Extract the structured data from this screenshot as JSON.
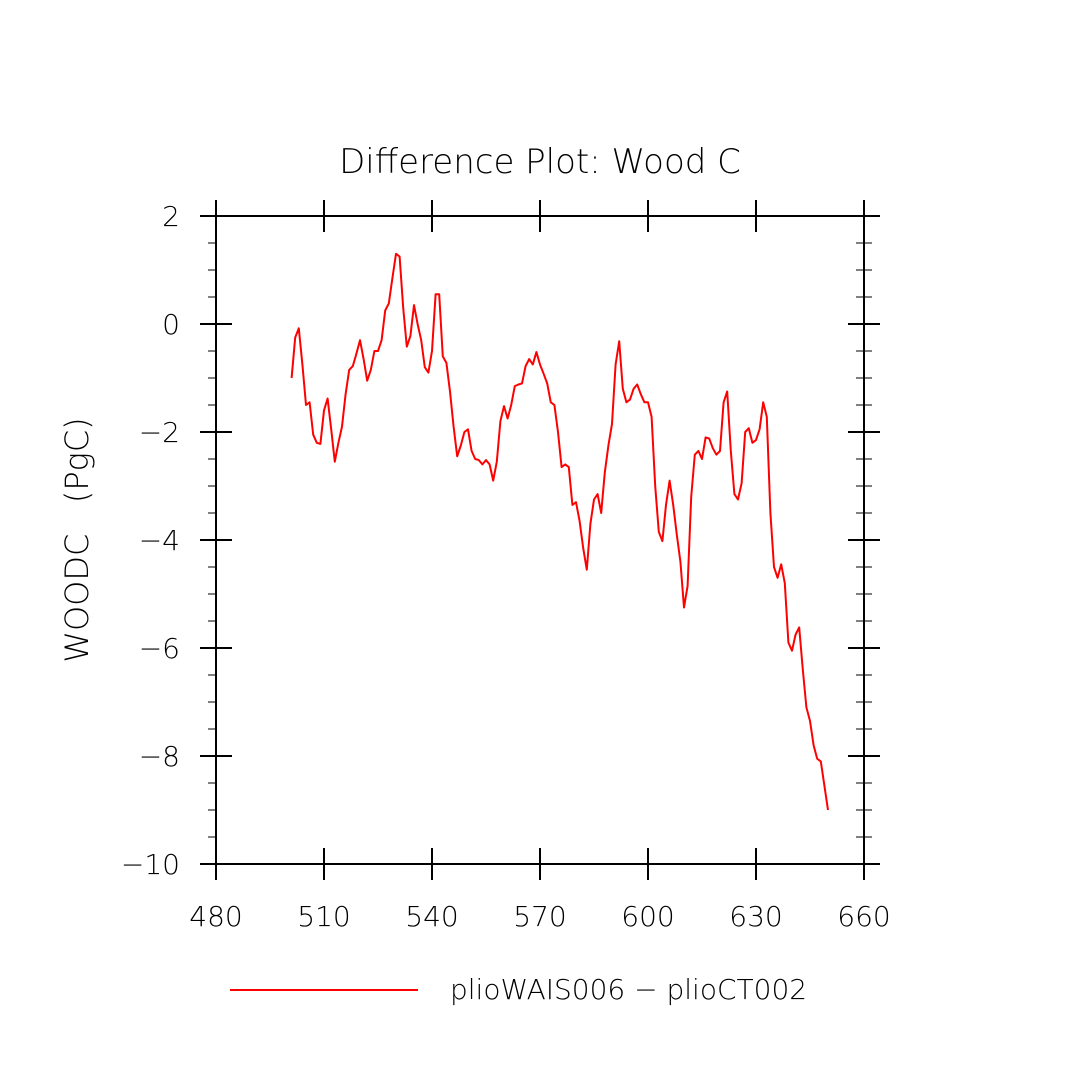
{
  "chart_data": {
    "type": "line",
    "title": "Difference Plot: Wood C",
    "xlabel": "",
    "ylabel": "WOODC   (PgC)",
    "xlim": [
      480,
      660
    ],
    "ylim": [
      -10,
      2
    ],
    "x_ticks": [
      480,
      510,
      540,
      570,
      600,
      630,
      660
    ],
    "x_tick_labels": [
      "480",
      "510",
      "540",
      "570",
      "600",
      "630",
      "660"
    ],
    "y_ticks": [
      2,
      0,
      -2,
      -4,
      -6,
      -8,
      -10
    ],
    "y_tick_labels": [
      "2",
      "0",
      "−2",
      "−4",
      "−6",
      "−8",
      "−10"
    ],
    "grid": false,
    "legend_position": "bottom",
    "series": [
      {
        "name": "plioWAIS006 − plioCT002",
        "color": "#ff0000",
        "x": [
          501,
          502,
          503,
          504,
          505,
          506,
          507,
          508,
          509,
          510,
          511,
          512,
          513,
          514,
          515,
          516,
          517,
          518,
          519,
          520,
          521,
          522,
          523,
          524,
          525,
          526,
          527,
          528,
          529,
          530,
          531,
          532,
          533,
          534,
          535,
          536,
          537,
          538,
          539,
          540,
          541,
          542,
          543,
          544,
          545,
          546,
          547,
          548,
          549,
          550,
          551,
          552,
          553,
          554,
          555,
          556,
          557,
          558,
          559,
          560,
          561,
          562,
          563,
          564,
          565,
          566,
          567,
          568,
          569,
          570,
          571,
          572,
          573,
          574,
          575,
          576,
          577,
          578,
          579,
          580,
          581,
          582,
          583,
          584,
          585,
          586,
          587,
          588,
          589,
          590,
          591,
          592,
          593,
          594,
          595,
          596,
          597,
          598,
          599,
          600,
          601,
          602,
          603,
          604,
          605,
          606,
          607,
          608,
          609,
          610,
          611,
          612,
          613,
          614,
          615,
          616,
          617,
          618,
          619,
          620,
          621,
          622,
          623,
          624,
          625,
          626,
          627,
          628,
          629,
          630,
          631,
          632,
          633,
          634,
          635,
          636,
          637,
          638,
          639,
          640,
          641,
          642,
          643,
          644,
          645,
          646,
          647,
          648,
          649,
          650
        ],
        "y": [
          -1.0,
          -0.25,
          -0.08,
          -0.75,
          -1.5,
          -1.45,
          -2.05,
          -2.2,
          -2.22,
          -1.6,
          -1.38,
          -1.95,
          -2.55,
          -2.2,
          -1.9,
          -1.3,
          -0.85,
          -0.78,
          -0.55,
          -0.3,
          -0.65,
          -1.05,
          -0.85,
          -0.5,
          -0.5,
          -0.3,
          0.25,
          0.38,
          0.85,
          1.3,
          1.25,
          0.3,
          -0.42,
          -0.22,
          0.35,
          0.0,
          -0.3,
          -0.8,
          -0.9,
          -0.5,
          0.55,
          0.55,
          -0.6,
          -0.72,
          -1.25,
          -1.9,
          -2.45,
          -2.25,
          -2.0,
          -1.95,
          -2.35,
          -2.5,
          -2.52,
          -2.6,
          -2.52,
          -2.6,
          -2.9,
          -2.55,
          -1.8,
          -1.52,
          -1.75,
          -1.5,
          -1.15,
          -1.12,
          -1.1,
          -0.78,
          -0.65,
          -0.75,
          -0.52,
          -0.75,
          -0.92,
          -1.1,
          -1.45,
          -1.5,
          -2.0,
          -2.65,
          -2.6,
          -2.65,
          -3.35,
          -3.3,
          -3.65,
          -4.15,
          -4.55,
          -3.7,
          -3.25,
          -3.15,
          -3.5,
          -2.75,
          -2.25,
          -1.85,
          -0.75,
          -0.32,
          -1.2,
          -1.45,
          -1.4,
          -1.2,
          -1.12,
          -1.3,
          -1.45,
          -1.45,
          -1.72,
          -3.0,
          -3.85,
          -4.02,
          -3.35,
          -2.9,
          -3.35,
          -3.9,
          -4.4,
          -5.25,
          -4.85,
          -3.2,
          -2.42,
          -2.35,
          -2.5,
          -2.1,
          -2.12,
          -2.3,
          -2.42,
          -2.35,
          -1.45,
          -1.25,
          -2.35,
          -3.15,
          -3.25,
          -2.95,
          -2.0,
          -1.93,
          -2.2,
          -2.15,
          -1.95,
          -1.45,
          -1.72,
          -3.5,
          -4.5,
          -4.7,
          -4.45,
          -4.8,
          -5.9,
          -6.05,
          -5.75,
          -5.62,
          -6.4,
          -7.1,
          -7.35,
          -7.8,
          -8.05,
          -8.1,
          -8.55,
          -9.0
        ]
      }
    ]
  }
}
